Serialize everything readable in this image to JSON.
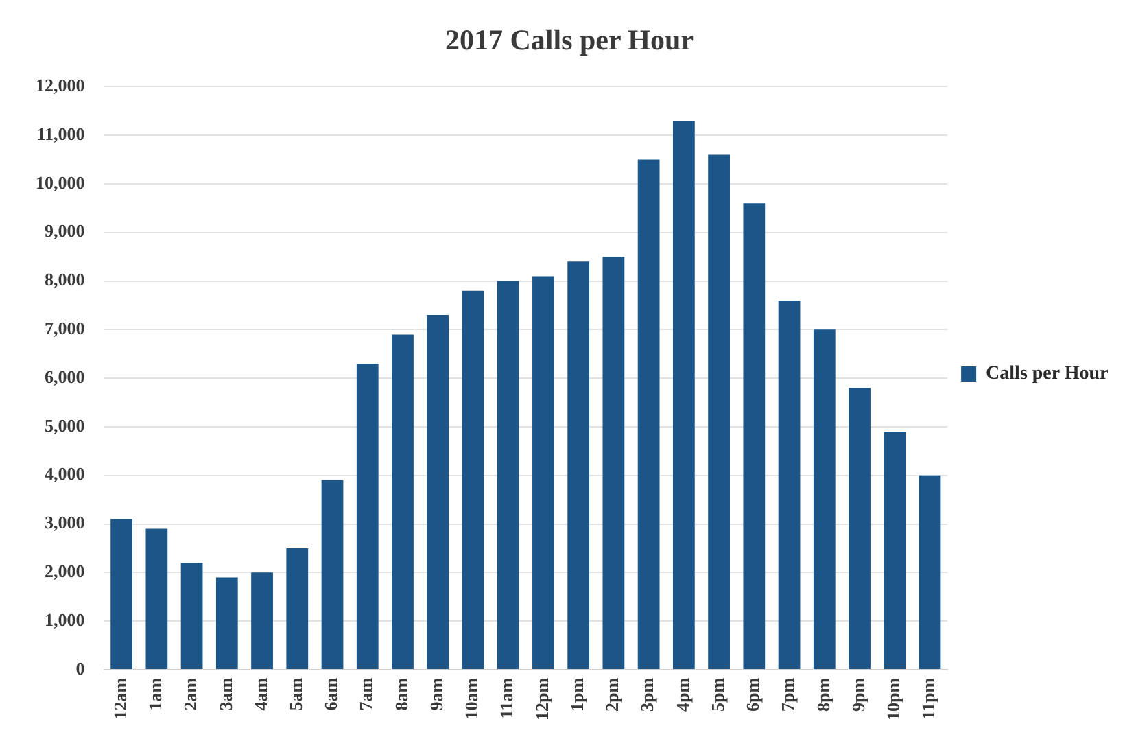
{
  "chart_data": {
    "type": "bar",
    "title": "2017 Calls per Hour",
    "categories": [
      "12am",
      "1am",
      "2am",
      "3am",
      "4am",
      "5am",
      "6am",
      "7am",
      "8am",
      "9am",
      "10am",
      "11am",
      "12pm",
      "1pm",
      "2pm",
      "3pm",
      "4pm",
      "5pm",
      "6pm",
      "7pm",
      "8pm",
      "9pm",
      "10pm",
      "11pm"
    ],
    "series": [
      {
        "name": "Calls per Hour",
        "color": "#1c5689",
        "values": [
          3100,
          2900,
          2200,
          1900,
          2000,
          2500,
          3900,
          6300,
          6900,
          7300,
          7800,
          8000,
          8100,
          8400,
          8500,
          10500,
          11300,
          10600,
          9600,
          7600,
          7000,
          5800,
          4900,
          4000
        ]
      }
    ],
    "ylim": [
      0,
      12000
    ],
    "yticks": [
      {
        "value": 0,
        "label": "0"
      },
      {
        "value": 1000,
        "label": "1,000"
      },
      {
        "value": 2000,
        "label": "2,000"
      },
      {
        "value": 3000,
        "label": "3,000"
      },
      {
        "value": 4000,
        "label": "4,000"
      },
      {
        "value": 5000,
        "label": "5,000"
      },
      {
        "value": 6000,
        "label": "6,000"
      },
      {
        "value": 7000,
        "label": "7,000"
      },
      {
        "value": 8000,
        "label": "8,000"
      },
      {
        "value": 9000,
        "label": "9,000"
      },
      {
        "value": 10000,
        "label": "10,000"
      },
      {
        "value": 11000,
        "label": "11,000"
      },
      {
        "value": 12000,
        "label": "12,000"
      }
    ],
    "grid": "y",
    "legend": "right"
  }
}
